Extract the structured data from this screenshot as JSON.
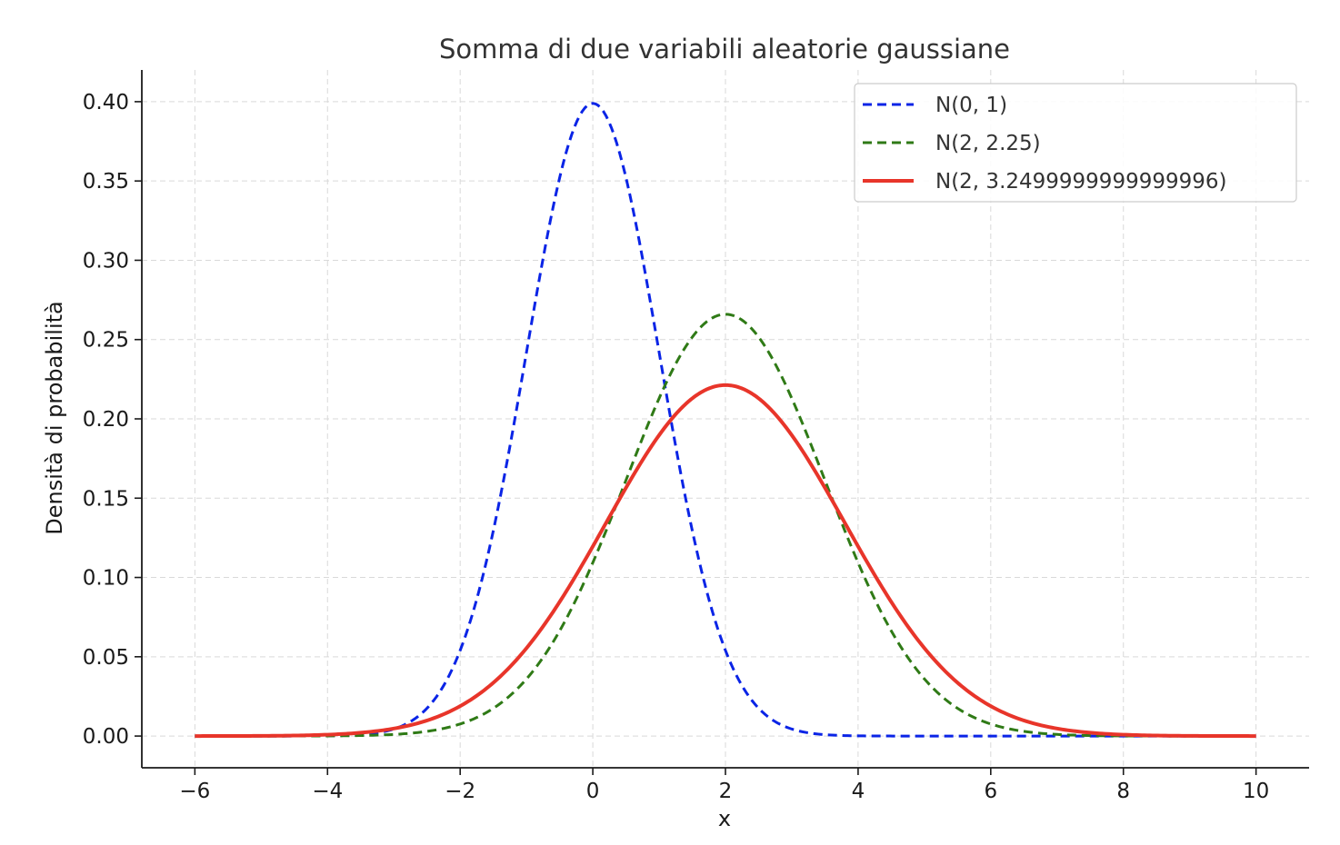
{
  "chart_data": {
    "type": "line",
    "title": "Somma di due variabili aleatorie gaussiane",
    "xlabel": "x",
    "ylabel": "Densità di probabilità",
    "xlim": [
      -6.8,
      10.8
    ],
    "ylim": [
      -0.02,
      0.42
    ],
    "xticks": [
      -6,
      -4,
      -2,
      0,
      2,
      4,
      6,
      8,
      10
    ],
    "xtick_labels": [
      "−6",
      "−4",
      "−2",
      "0",
      "2",
      "4",
      "6",
      "8",
      "10"
    ],
    "yticks": [
      0.0,
      0.05,
      0.1,
      0.15,
      0.2,
      0.25,
      0.3,
      0.35,
      0.4
    ],
    "ytick_labels": [
      "0.00",
      "0.05",
      "0.10",
      "0.15",
      "0.20",
      "0.25",
      "0.30",
      "0.35",
      "0.40"
    ],
    "grid": true,
    "legend_position": "top-right",
    "x_range": [
      -6,
      10
    ],
    "series": [
      {
        "name": "N(0, 1)",
        "mean": 0,
        "variance": 1,
        "color": "#0a24e6",
        "style": "dashed",
        "peak": 0.399
      },
      {
        "name": "N(2, 2.25)",
        "mean": 2,
        "variance": 2.25,
        "color": "#2f7a16",
        "style": "dashed",
        "peak": 0.266
      },
      {
        "name": "N(2, 3.2499999999999996)",
        "mean": 2,
        "variance": 3.2499999999999996,
        "color": "#e8352a",
        "style": "solid",
        "peak": 0.221
      }
    ]
  }
}
